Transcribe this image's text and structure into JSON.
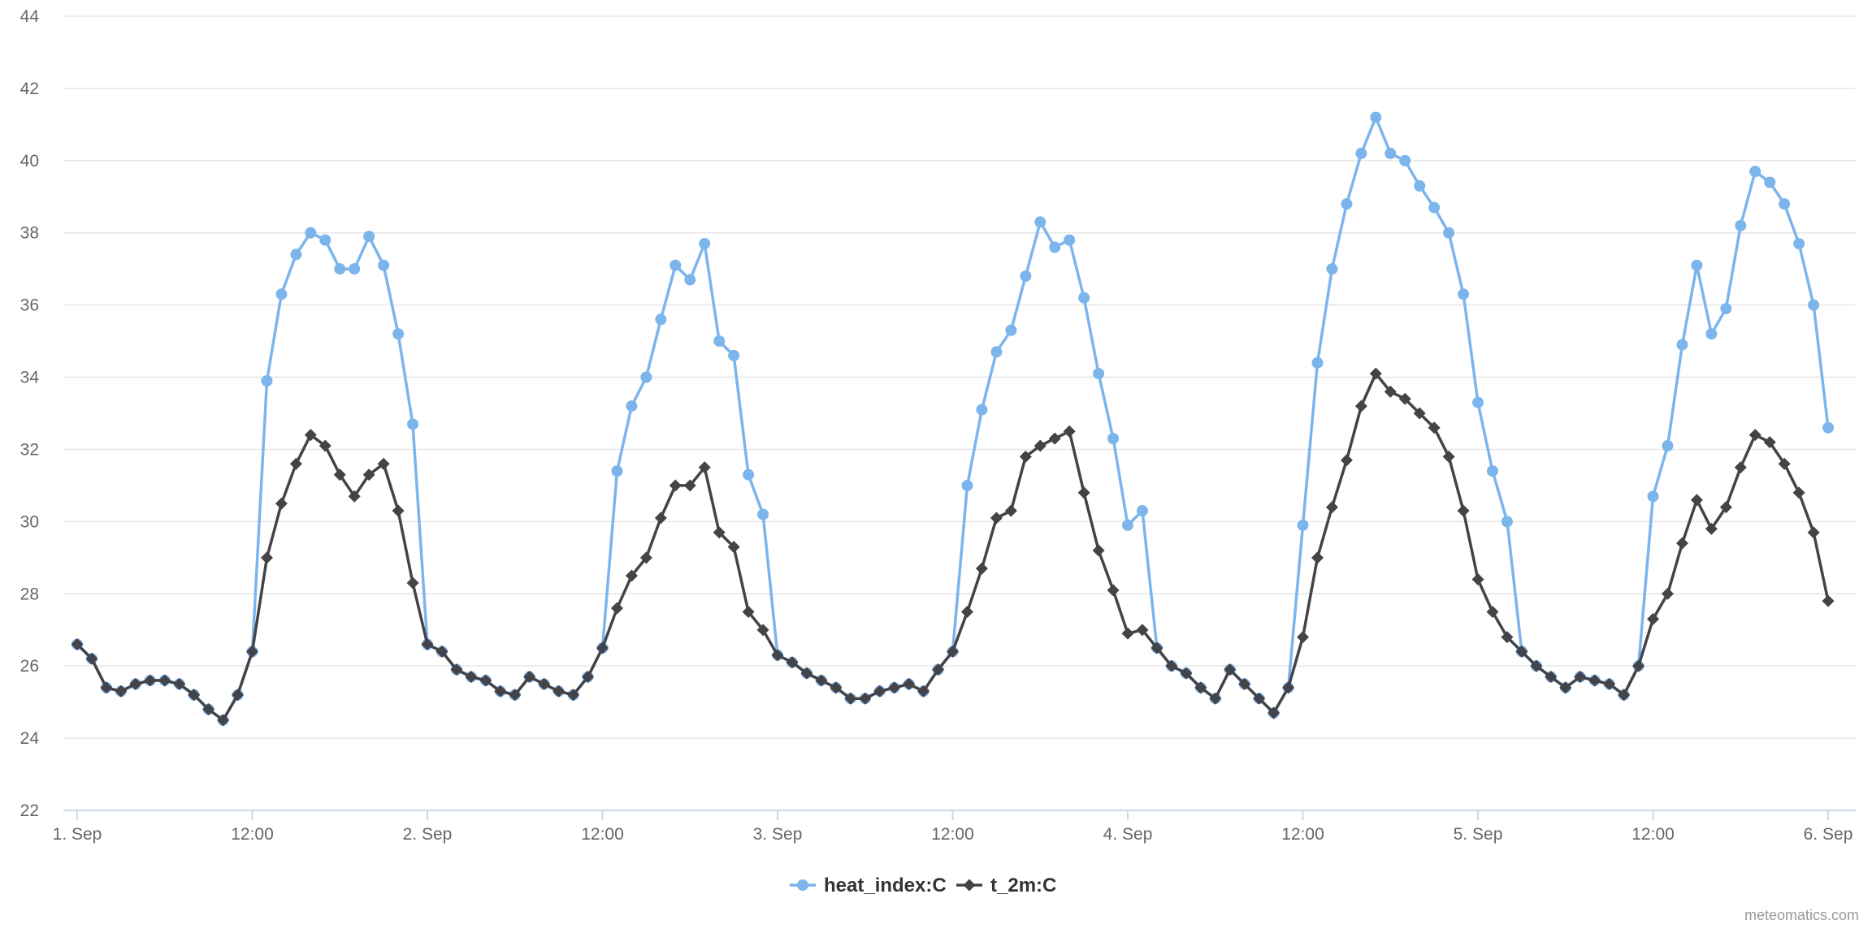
{
  "chart_data": {
    "type": "line",
    "title": "",
    "xlabel": "",
    "ylabel": "",
    "ylim": [
      22,
      44
    ],
    "y_ticks": [
      22,
      24,
      26,
      28,
      30,
      32,
      34,
      36,
      38,
      40,
      42,
      44
    ],
    "x_start": "2023-09-01 00:00",
    "x_step_hours": 1,
    "x_ticks": [
      {
        "label": "1. Sep",
        "hour": 0
      },
      {
        "label": "12:00",
        "hour": 12
      },
      {
        "label": "2. Sep",
        "hour": 24
      },
      {
        "label": "12:00",
        "hour": 36
      },
      {
        "label": "3. Sep",
        "hour": 48
      },
      {
        "label": "12:00",
        "hour": 60
      },
      {
        "label": "4. Sep",
        "hour": 72
      },
      {
        "label": "12:00",
        "hour": 84
      },
      {
        "label": "5. Sep",
        "hour": 96
      },
      {
        "label": "12:00",
        "hour": 108
      },
      {
        "label": "6. Sep",
        "hour": 120
      }
    ],
    "grid": true,
    "legend_position": "bottom-center",
    "series": [
      {
        "name": "heat_index:C",
        "color": "#7cb5ec",
        "marker": "circle",
        "values": [
          26.6,
          26.2,
          25.4,
          25.3,
          25.5,
          25.6,
          25.6,
          25.5,
          25.2,
          24.8,
          24.5,
          25.2,
          26.4,
          33.9,
          36.3,
          37.4,
          38.0,
          37.8,
          37.0,
          37.0,
          37.9,
          37.1,
          35.2,
          32.7,
          26.6,
          26.4,
          25.9,
          25.7,
          25.6,
          25.3,
          25.2,
          25.7,
          25.5,
          25.3,
          25.2,
          25.7,
          26.5,
          31.4,
          33.2,
          34.0,
          35.6,
          37.1,
          36.7,
          37.7,
          35.0,
          34.6,
          31.3,
          30.2,
          26.3,
          26.1,
          25.8,
          25.6,
          25.4,
          25.1,
          25.1,
          25.3,
          25.4,
          25.5,
          25.3,
          25.9,
          26.4,
          31.0,
          33.1,
          34.7,
          35.3,
          36.8,
          38.3,
          37.6,
          37.8,
          36.2,
          34.1,
          32.3,
          29.9,
          30.3,
          26.5,
          26.0,
          25.8,
          25.4,
          25.1,
          25.9,
          25.5,
          25.1,
          24.7,
          25.4,
          29.9,
          34.4,
          37.0,
          38.8,
          40.2,
          41.2,
          40.2,
          40.0,
          39.3,
          38.7,
          38.0,
          36.3,
          33.3,
          31.4,
          30.0,
          26.4,
          26.0,
          25.7,
          25.4,
          25.7,
          25.6,
          25.5,
          25.2,
          26.0,
          30.7,
          32.1,
          34.9,
          37.1,
          35.2,
          35.9,
          38.2,
          39.7,
          39.4,
          38.8,
          37.7,
          36.0,
          32.6
        ]
      },
      {
        "name": "t_2m:C",
        "color": "#434348",
        "marker": "diamond",
        "values": [
          26.6,
          26.2,
          25.4,
          25.3,
          25.5,
          25.6,
          25.6,
          25.5,
          25.2,
          24.8,
          24.5,
          25.2,
          26.4,
          29.0,
          30.5,
          31.6,
          32.4,
          32.1,
          31.3,
          30.7,
          31.3,
          31.6,
          30.3,
          28.3,
          26.6,
          26.4,
          25.9,
          25.7,
          25.6,
          25.3,
          25.2,
          25.7,
          25.5,
          25.3,
          25.2,
          25.7,
          26.5,
          27.6,
          28.5,
          29.0,
          30.1,
          31.0,
          31.0,
          31.5,
          29.7,
          29.3,
          27.5,
          27.0,
          26.3,
          26.1,
          25.8,
          25.6,
          25.4,
          25.1,
          25.1,
          25.3,
          25.4,
          25.5,
          25.3,
          25.9,
          26.4,
          27.5,
          28.7,
          30.1,
          30.3,
          31.8,
          32.1,
          32.3,
          32.5,
          30.8,
          29.2,
          28.1,
          26.9,
          27.0,
          26.5,
          26.0,
          25.8,
          25.4,
          25.1,
          25.9,
          25.5,
          25.1,
          24.7,
          25.4,
          26.8,
          29.0,
          30.4,
          31.7,
          33.2,
          34.1,
          33.6,
          33.4,
          33.0,
          32.6,
          31.8,
          30.3,
          28.4,
          27.5,
          26.8,
          26.4,
          26.0,
          25.7,
          25.4,
          25.7,
          25.6,
          25.5,
          25.2,
          26.0,
          27.3,
          28.0,
          29.4,
          30.6,
          29.8,
          30.4,
          31.5,
          32.4,
          32.2,
          31.6,
          30.8,
          29.7,
          27.8
        ]
      }
    ]
  },
  "credit": "meteomatics.com"
}
